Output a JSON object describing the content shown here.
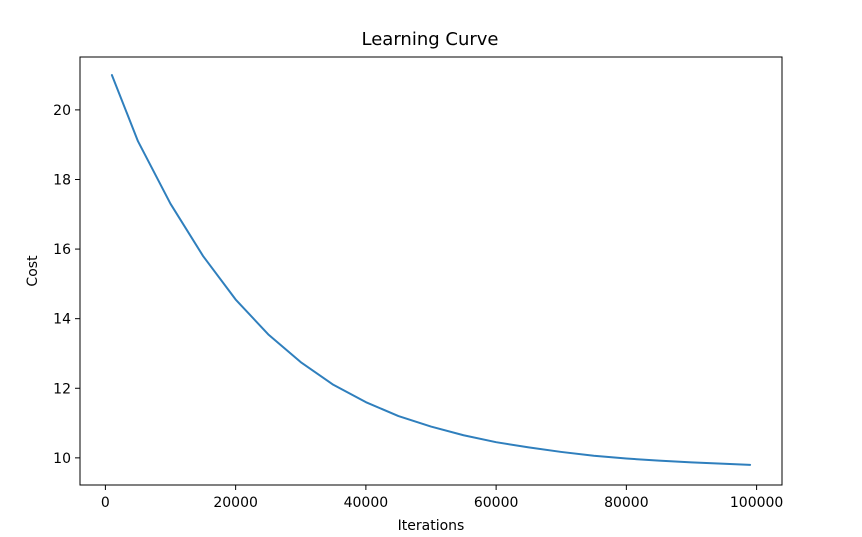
{
  "chart_data": {
    "type": "line",
    "title": "Learning Curve",
    "xlabel": "Iterations",
    "ylabel": "Cost",
    "xlim": [
      -3900,
      103900
    ],
    "ylim": [
      9.22,
      21.52
    ],
    "grid": false,
    "xticks": [
      0,
      20000,
      40000,
      60000,
      80000,
      100000
    ],
    "xtick_labels": [
      "0",
      "20000",
      "40000",
      "60000",
      "80000",
      "100000"
    ],
    "yticks": [
      10,
      12,
      14,
      16,
      18,
      20
    ],
    "ytick_labels": [
      "10",
      "12",
      "14",
      "16",
      "18",
      "20"
    ],
    "series": [
      {
        "color": "#2f7fbd",
        "x": [
          1000,
          5000,
          10000,
          15000,
          20000,
          25000,
          30000,
          35000,
          40000,
          45000,
          50000,
          55000,
          60000,
          65000,
          70000,
          75000,
          80000,
          85000,
          90000,
          95000,
          99000
        ],
        "y": [
          21.0,
          19.1,
          17.3,
          15.8,
          14.55,
          13.55,
          12.75,
          12.1,
          11.6,
          11.2,
          10.9,
          10.65,
          10.45,
          10.3,
          10.17,
          10.06,
          9.98,
          9.92,
          9.87,
          9.83,
          9.8
        ]
      }
    ]
  }
}
